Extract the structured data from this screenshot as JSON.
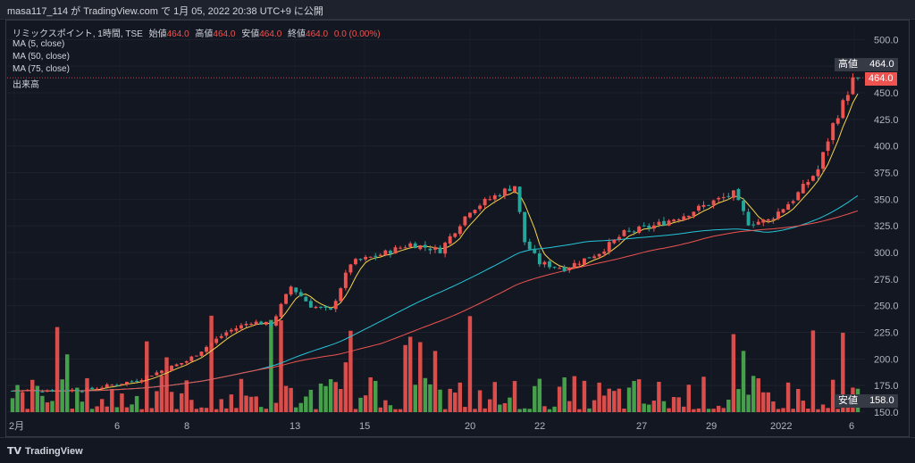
{
  "header": {
    "publish_line": "masa117_114 が TradingView.com で 1月 05, 2022 20:38 UTC+9 に公開"
  },
  "legend": {
    "symbol_line": "リミックスポイント, 1時間, TSE",
    "open_label": "始値",
    "open_value": "464.0",
    "high_label": "高値",
    "high_value": "464.0",
    "low_label": "安値",
    "low_value": "464.0",
    "close_label": "終値",
    "close_value": "464.0",
    "change": "0.0 (0.00%)",
    "ma1": "MA (5, close)",
    "ma2": "MA (50, close)",
    "ma3": "MA (75, close)",
    "volume": "出来高"
  },
  "price_tags": {
    "high_label": "高値",
    "high_value": "464.0",
    "last_value": "464.0",
    "low_label": "安値",
    "low_value": "158.0"
  },
  "footer": {
    "brand": "TradingView",
    "brand_mark": "TV"
  },
  "colors": {
    "up": "#ef5350",
    "down": "#26a69a",
    "ma5": "#f5d44b",
    "ma50": "#26c6da",
    "ma75": "#ef5350",
    "vol_up": "#ef5350",
    "vol_down": "#4caf50"
  },
  "chart_data": {
    "type": "candlestick",
    "y_axis": {
      "ticks": [
        150.0,
        175.0,
        200.0,
        225.0,
        250.0,
        275.0,
        300.0,
        325.0,
        350.0,
        375.0,
        400.0,
        425.0,
        450.0,
        475.0,
        500.0
      ],
      "ylim": [
        150,
        512
      ]
    },
    "x_axis": {
      "tick_labels": [
        "2月",
        "6",
        "8",
        "13",
        "15",
        "20",
        "22",
        "27",
        "29",
        "2022",
        "6"
      ]
    },
    "price_waypoints": [
      {
        "i": 0,
        "p": 170
      },
      {
        "i": 15,
        "p": 171
      },
      {
        "i": 25,
        "p": 180
      },
      {
        "i": 35,
        "p": 198
      },
      {
        "i": 43,
        "p": 225
      },
      {
        "i": 48,
        "p": 235
      },
      {
        "i": 52,
        "p": 232
      },
      {
        "i": 56,
        "p": 268
      },
      {
        "i": 60,
        "p": 250
      },
      {
        "i": 64,
        "p": 245
      },
      {
        "i": 68,
        "p": 290
      },
      {
        "i": 74,
        "p": 298
      },
      {
        "i": 80,
        "p": 308
      },
      {
        "i": 86,
        "p": 302
      },
      {
        "i": 92,
        "p": 340
      },
      {
        "i": 99,
        "p": 358
      },
      {
        "i": 101,
        "p": 363
      },
      {
        "i": 103,
        "p": 310
      },
      {
        "i": 106,
        "p": 290
      },
      {
        "i": 111,
        "p": 285
      },
      {
        "i": 118,
        "p": 300
      },
      {
        "i": 123,
        "p": 318
      },
      {
        "i": 129,
        "p": 325
      },
      {
        "i": 135,
        "p": 335
      },
      {
        "i": 141,
        "p": 348
      },
      {
        "i": 145,
        "p": 355
      },
      {
        "i": 148,
        "p": 328
      },
      {
        "i": 152,
        "p": 330
      },
      {
        "i": 157,
        "p": 350
      },
      {
        "i": 162,
        "p": 378
      },
      {
        "i": 165,
        "p": 420
      },
      {
        "i": 167,
        "p": 440
      },
      {
        "i": 169,
        "p": 462
      },
      {
        "i": 170,
        "p": 464
      }
    ],
    "candle_count": 171,
    "ma_periods": [
      5,
      50,
      75
    ],
    "last_price": 464.0,
    "high_price": 464.0
  }
}
